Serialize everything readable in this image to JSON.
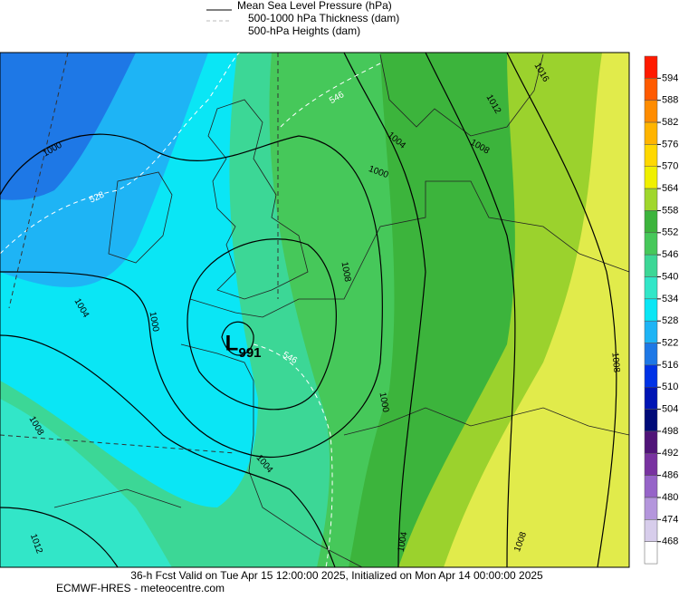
{
  "legend": [
    "Mean Sea Level Pressure (hPa)",
    "500-1000 hPa Thickness (dam)",
    "500-hPa Heights (dam)"
  ],
  "colorbar": {
    "labels": [
      594,
      588,
      582,
      576,
      570,
      564,
      558,
      552,
      546,
      540,
      534,
      528,
      522,
      516,
      510,
      504,
      498,
      492,
      486,
      480,
      474,
      468
    ],
    "colors": [
      "#ff1a00",
      "#ff5a00",
      "#ff8c00",
      "#ffb400",
      "#ffd800",
      "#f0f000",
      "#a0d72d",
      "#3cb43c",
      "#46c85a",
      "#3cd796",
      "#32e6c8",
      "#0ae6f5",
      "#1eb4f5",
      "#1e78e6",
      "#0032e6",
      "#0014b4",
      "#000a78",
      "#501478",
      "#7832a0",
      "#9664c8",
      "#b496dc",
      "#d7cdeb",
      "#ffffff"
    ]
  },
  "low": {
    "symbol": "L",
    "pressure": "991"
  },
  "isobar_labels": [
    "1000",
    "1004",
    "1000",
    "1008",
    "1012",
    "1004",
    "1000",
    "1004",
    "1008",
    "1008",
    "1000",
    "1004",
    "1008",
    "1012",
    "1016",
    "1008"
  ],
  "thickness_labels": [
    "528",
    "546",
    "546"
  ],
  "footer": [
    "36-h Fcst Valid on Tue Apr 15 12:00:00 2025, Initialized on Mon Apr 14 00:00:00 2025",
    "ECMWF-HRES  - meteocentre.com"
  ]
}
